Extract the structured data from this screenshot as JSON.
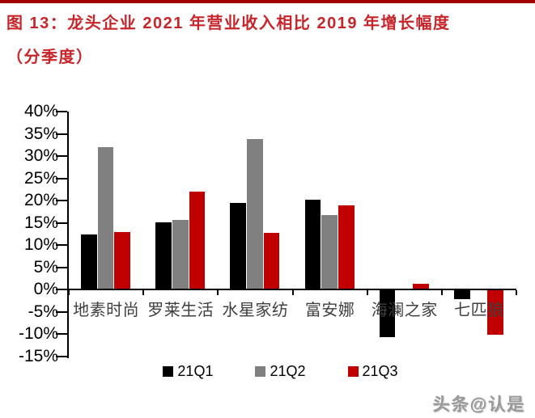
{
  "page": {
    "title_line1": "图 13：龙头企业 2021 年营业收入相比 2019 年增长幅度",
    "title_line2": "（分季度）",
    "title_color": "#C8252B",
    "top_rule_color": "#A00000",
    "watermark": "头条@认是"
  },
  "chart_data": {
    "type": "bar",
    "title": "龙头企业2021年营业收入相比2019年增长幅度（分季度）",
    "categories": [
      "地素时尚",
      "罗莱生活",
      "水星家纺",
      "富安娜",
      "海澜之家",
      "七匹狼"
    ],
    "series": [
      {
        "name": "21Q1",
        "color": "#000000",
        "values": [
          12.4,
          15.2,
          19.4,
          20.3,
          -10.5,
          -1.9
        ]
      },
      {
        "name": "21Q2",
        "color": "#808080",
        "values": [
          32.1,
          15.7,
          33.9,
          16.7,
          0,
          0
        ]
      },
      {
        "name": "21Q3",
        "color": "#C00000",
        "values": [
          12.9,
          22.0,
          12.7,
          19.0,
          1.4,
          -10.0
        ]
      }
    ],
    "xlabel": "",
    "ylabel": "",
    "ylim": [
      -15,
      40
    ],
    "y_tick_step": 5,
    "y_tick_labels": [
      "40%",
      "35%",
      "30%",
      "25%",
      "20%",
      "15%",
      "10%",
      "5%",
      "0%",
      "-5%",
      "-10%",
      "-15%"
    ],
    "grid": false,
    "legend_position": "bottom"
  }
}
